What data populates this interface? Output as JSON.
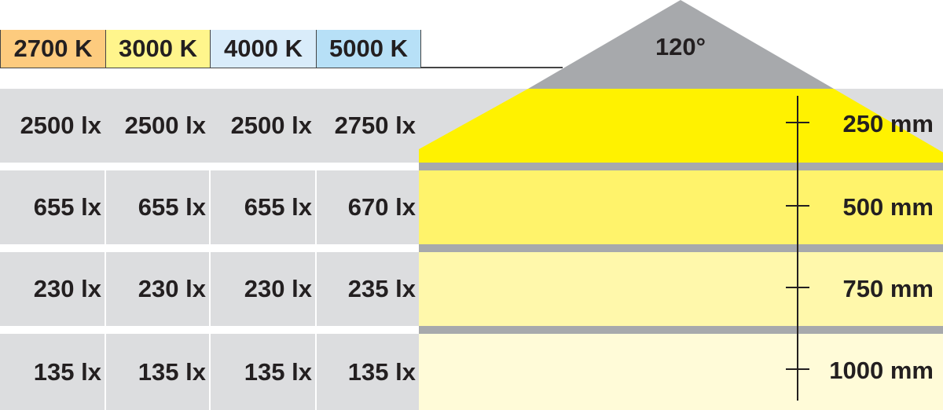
{
  "color_temperatures": [
    {
      "label": "2700 K",
      "color": "#fdcb7e"
    },
    {
      "label": "3000 K",
      "color": "#fff58c"
    },
    {
      "label": "4000 K",
      "color": "#d9ecfa"
    },
    {
      "label": "5000 K",
      "color": "#b7e0f7"
    }
  ],
  "beam_angle": "120°",
  "rows": [
    {
      "distance": "250 mm",
      "values": [
        "2500 lx",
        "2500 lx",
        "2500 lx",
        "2750 lx"
      ],
      "band_color": "#fff200"
    },
    {
      "distance": "500 mm",
      "values": [
        "655 lx",
        "655 lx",
        "655 lx",
        "670 lx"
      ],
      "band_color": "#fff36b"
    },
    {
      "distance": "750 mm",
      "values": [
        "230 lx",
        "230 lx",
        "230 lx",
        "235 lx"
      ],
      "band_color": "#fff8ab"
    },
    {
      "distance": "1000 mm",
      "values": [
        "135 lx",
        "135 lx",
        "135 lx",
        "135 lx"
      ],
      "band_color": "#fffbd8"
    }
  ]
}
